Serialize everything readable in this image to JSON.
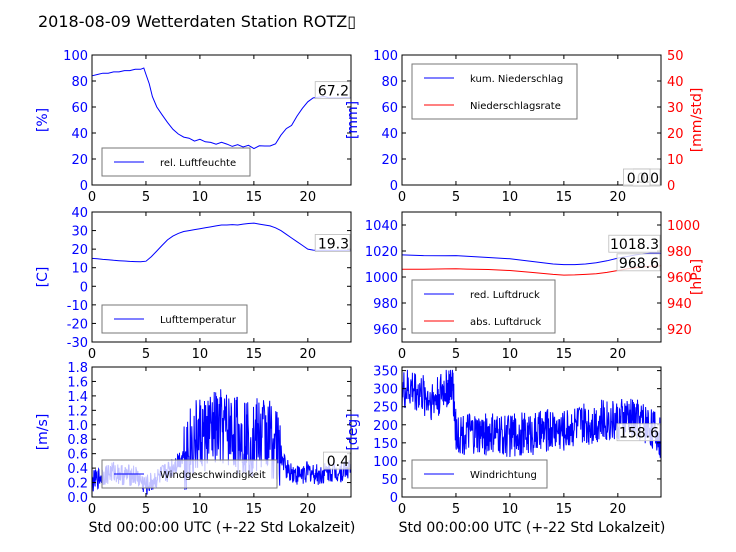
{
  "title": "2018-08-09 Wetterdaten Station ROTZ▯",
  "xlabel": "Std 00:00:00 UTC (+-22 Std Lokalzeit)",
  "colors": {
    "primary": "#0000ff",
    "secondary": "#ff0000",
    "text": "#000000"
  },
  "chart_data": [
    {
      "id": "humidity",
      "type": "line",
      "ylabel": "[%]",
      "ylim": [
        0,
        100
      ],
      "yticks": [
        0,
        20,
        40,
        60,
        80,
        100
      ],
      "xlim": [
        0,
        24
      ],
      "xticks": [
        0,
        5,
        10,
        15,
        20
      ],
      "series": [
        {
          "name": "rel. Luftfeuchte",
          "x": [
            0,
            0.5,
            1,
            1.5,
            2,
            2.5,
            3,
            3.5,
            4,
            4.5,
            4.8,
            5,
            5.3,
            5.6,
            6,
            6.5,
            7,
            7.5,
            8,
            8.5,
            9,
            9.5,
            10,
            10.5,
            11,
            11.5,
            12,
            12.5,
            13,
            13.5,
            14,
            14.5,
            15,
            15.5,
            16,
            16.5,
            17,
            17.5,
            18,
            18.5,
            19,
            19.5,
            20,
            20.5,
            21,
            21.5,
            22,
            22.5,
            23,
            23.5,
            24
          ],
          "values": [
            84,
            85,
            86,
            86,
            87,
            87,
            88,
            88,
            89,
            89,
            90,
            85,
            78,
            68,
            60,
            54,
            48,
            44,
            40,
            37,
            36,
            35,
            34,
            33,
            33,
            32,
            32,
            31,
            31,
            31,
            30,
            30,
            29,
            30,
            30,
            31,
            33,
            37,
            42,
            47,
            53,
            59,
            64,
            67,
            67.5,
            68,
            67,
            67,
            67,
            67.2,
            67.2
          ]
        }
      ],
      "last_value_label": "67.2",
      "legend_loc": "lower left"
    },
    {
      "id": "precipitation",
      "type": "line",
      "ylabel": "[mm]",
      "ylim": [
        0,
        100
      ],
      "yticks": [
        0,
        20,
        40,
        60,
        80,
        100
      ],
      "y2label": "[mm/std]",
      "y2lim": [
        0,
        50
      ],
      "y2ticks": [
        0,
        10,
        20,
        30,
        40,
        50
      ],
      "xlim": [
        0,
        24
      ],
      "xticks": [
        0,
        5,
        10,
        15,
        20
      ],
      "series": [
        {
          "name": "kum. Niederschlag",
          "x": [
            0,
            24
          ],
          "values": [
            0,
            0
          ]
        },
        {
          "name": "Niederschlagsrate",
          "x": [
            0,
            24
          ],
          "values": [
            0,
            0
          ],
          "axis": "right"
        }
      ],
      "last_value_labels": [
        "0.0",
        "0.0"
      ],
      "legend_loc": "upper left"
    },
    {
      "id": "temperature",
      "type": "line",
      "ylabel": "[C]",
      "ylim": [
        -30,
        40
      ],
      "yticks": [
        -30,
        -20,
        -10,
        0,
        10,
        20,
        30,
        40
      ],
      "xlim": [
        0,
        24
      ],
      "xticks": [
        0,
        5,
        10,
        15,
        20
      ],
      "series": [
        {
          "name": "Lufttemperatur",
          "x": [
            0,
            0.5,
            1,
            1.5,
            2,
            2.5,
            3,
            3.5,
            4,
            4.5,
            5,
            5.5,
            6,
            6.5,
            7,
            7.5,
            8,
            8.5,
            9,
            9.5,
            10,
            10.5,
            11,
            11.5,
            12,
            12.5,
            13,
            13.5,
            14,
            14.5,
            15,
            15.5,
            16,
            16.5,
            17,
            17.5,
            18,
            18.5,
            19,
            19.5,
            20,
            20.5,
            21,
            21.5,
            22,
            22.5,
            23,
            23.5,
            24
          ],
          "values": [
            15,
            14.8,
            14.5,
            14.3,
            14,
            13.8,
            13.6,
            13.4,
            13.3,
            13.2,
            13.5,
            16,
            19,
            22,
            25,
            27,
            28.5,
            29.5,
            30,
            30.5,
            31,
            31.5,
            32,
            32.5,
            33,
            33,
            33.2,
            33,
            33.5,
            33.8,
            34,
            33.5,
            33,
            32.5,
            31.5,
            30,
            28,
            26,
            24,
            22,
            20,
            19.5,
            19.3,
            19.4,
            19.3,
            19.3,
            19.3,
            19.3,
            19.3
          ]
        }
      ],
      "last_value_label": "19.3",
      "legend_loc": "lower left"
    },
    {
      "id": "pressure",
      "type": "line",
      "ylabel": "",
      "ylim": [
        950,
        1050
      ],
      "yticks": [
        960,
        980,
        1000,
        1020,
        1040
      ],
      "y2label": "[hPa]",
      "y2lim": [
        910,
        1010
      ],
      "y2ticks": [
        920,
        940,
        960,
        980,
        1000
      ],
      "xlim": [
        0,
        24
      ],
      "xticks": [
        0,
        5,
        10,
        15,
        20
      ],
      "series": [
        {
          "name": "red. Luftdruck",
          "x": [
            0,
            2,
            4,
            5,
            6,
            8,
            10,
            12,
            14,
            15,
            16,
            17,
            18,
            19,
            20,
            21,
            22,
            23,
            24
          ],
          "values": [
            1017,
            1016.5,
            1016.3,
            1016.5,
            1016,
            1015,
            1014,
            1012,
            1010,
            1009.5,
            1009.5,
            1010,
            1011,
            1012.5,
            1014.5,
            1016,
            1017.5,
            1018.2,
            1018.3
          ]
        },
        {
          "name": "abs. Luftdruck",
          "axis": "right",
          "x": [
            0,
            2,
            4,
            5,
            6,
            8,
            10,
            12,
            14,
            15,
            16,
            17,
            18,
            19,
            20,
            21,
            22,
            23,
            24
          ],
          "values": [
            966,
            966,
            966.2,
            966.3,
            966.1,
            965.8,
            965,
            963.5,
            962,
            961.5,
            961.6,
            962,
            962.5,
            963.5,
            965,
            966.5,
            967.5,
            968.3,
            968.6
          ]
        }
      ],
      "last_value_labels": [
        "1018.3",
        "968.6"
      ],
      "legend_loc": "lower left"
    },
    {
      "id": "wind_speed",
      "type": "line",
      "ylabel": "[m/s]",
      "ylim": [
        0,
        1.8
      ],
      "yticks": [
        0.0,
        0.2,
        0.4,
        0.6,
        0.8,
        1.0,
        1.2,
        1.4,
        1.6,
        1.8
      ],
      "xlim": [
        0,
        24
      ],
      "xticks": [
        0,
        5,
        10,
        15,
        20
      ],
      "series": [
        {
          "name": "Windgeschwindigkeit",
          "x": [
            0,
            1,
            2,
            3,
            4,
            5,
            6,
            7,
            8,
            9,
            10,
            11,
            12,
            13,
            14,
            15,
            16,
            17,
            18,
            19,
            20,
            21,
            22,
            23,
            24
          ],
          "values": [
            0.2,
            0.3,
            0.35,
            0.3,
            0.3,
            0.15,
            0.25,
            0.35,
            0.5,
            0.7,
            0.85,
            0.9,
            0.95,
            0.9,
            0.85,
            0.8,
            0.9,
            0.75,
            0.4,
            0.3,
            0.35,
            0.3,
            0.35,
            0.35,
            0.4
          ]
        }
      ],
      "last_value_label": "0.4",
      "legend_loc": "lower left"
    },
    {
      "id": "wind_direction",
      "type": "line",
      "ylabel": "[deg]",
      "ylim": [
        0,
        360
      ],
      "yticks": [
        0,
        50,
        100,
        150,
        200,
        250,
        300,
        350
      ],
      "xlim": [
        0,
        24
      ],
      "xticks": [
        0,
        5,
        10,
        15,
        20
      ],
      "series": [
        {
          "name": "Windrichtung",
          "x": [
            0,
            1,
            2,
            3,
            4,
            4.7,
            5,
            6,
            7,
            8,
            9,
            10,
            11,
            12,
            13,
            14,
            15,
            16,
            17,
            18,
            19,
            20,
            21,
            22,
            23,
            24
          ],
          "values": [
            290,
            300,
            280,
            270,
            300,
            310,
            180,
            175,
            170,
            175,
            170,
            170,
            175,
            175,
            180,
            190,
            185,
            200,
            200,
            210,
            215,
            210,
            220,
            215,
            200,
            158.6
          ]
        }
      ],
      "last_value_label": "158.6",
      "legend_loc": "lower left"
    }
  ]
}
